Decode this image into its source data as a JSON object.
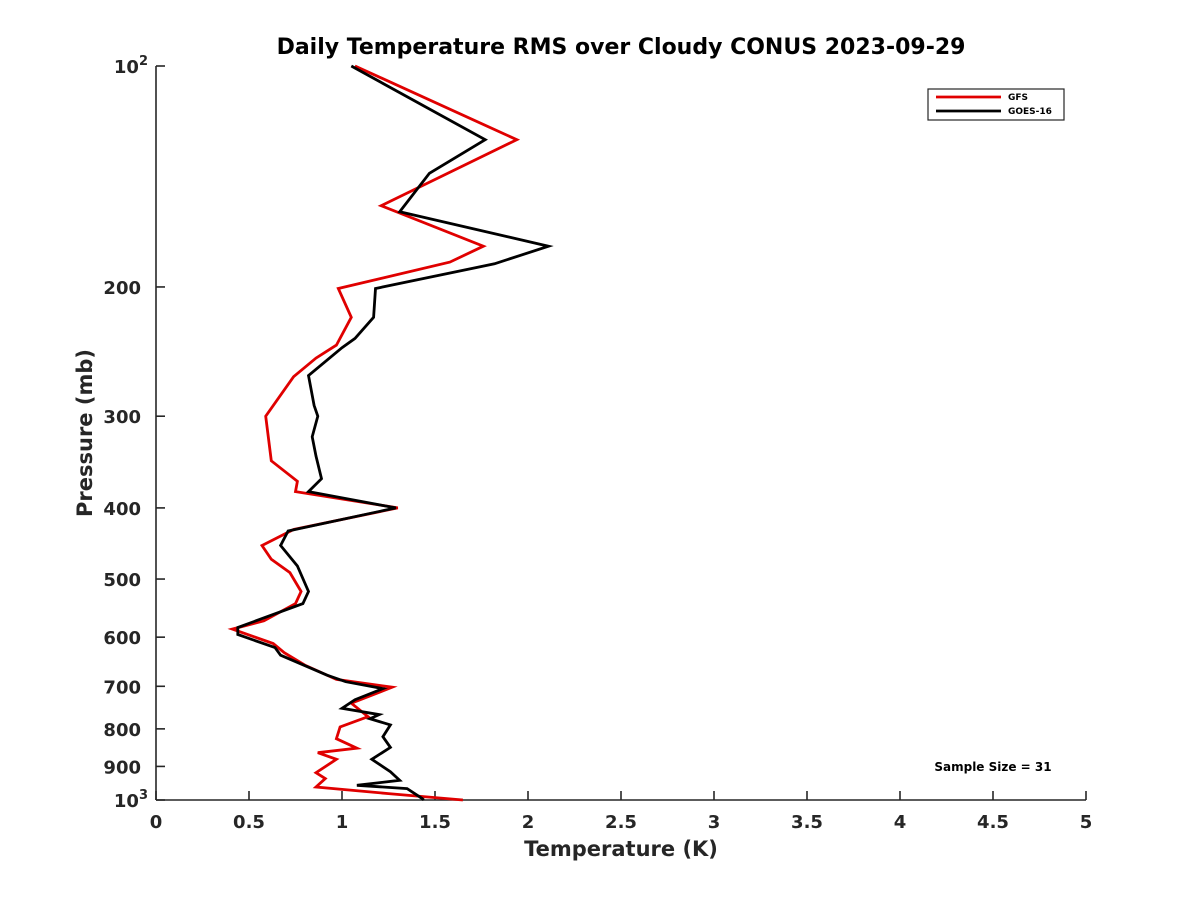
{
  "chart_data": {
    "type": "line",
    "title": "Daily Temperature RMS over Cloudy CONUS 2023-09-29",
    "xlabel": "Temperature (K)",
    "ylabel": "Pressure (mb)",
    "xlim": [
      0,
      5
    ],
    "ylim": [
      100,
      1000
    ],
    "yscale": "log",
    "y_reversed": true,
    "x_ticks": [
      "0",
      "0.5",
      "1",
      "1.5",
      "2",
      "2.5",
      "3",
      "3.5",
      "4",
      "4.5",
      "5"
    ],
    "x_tick_values": [
      0,
      0.5,
      1,
      1.5,
      2,
      2.5,
      3,
      3.5,
      4,
      4.5,
      5
    ],
    "y_ticks": [
      {
        "value": 100,
        "base": "10",
        "exp": "2",
        "label": ""
      },
      {
        "value": 200,
        "label": "200"
      },
      {
        "value": 300,
        "label": "300"
      },
      {
        "value": 400,
        "label": "400"
      },
      {
        "value": 500,
        "label": "500"
      },
      {
        "value": 600,
        "label": "600"
      },
      {
        "value": 700,
        "label": "700"
      },
      {
        "value": 800,
        "label": "800"
      },
      {
        "value": 900,
        "label": "900"
      },
      {
        "value": 1000,
        "base": "10",
        "exp": "3",
        "label": ""
      }
    ],
    "legend_position": "top-right",
    "annotation": "Sample Size = 31",
    "series": [
      {
        "name": "GFS",
        "color": "#e00000",
        "points": [
          [
            1.07,
            100
          ],
          [
            1.94,
            126
          ],
          [
            1.21,
            155
          ],
          [
            1.76,
            176
          ],
          [
            1.58,
            185
          ],
          [
            0.98,
            201
          ],
          [
            1.05,
            220
          ],
          [
            0.97,
            240
          ],
          [
            0.86,
            250
          ],
          [
            0.74,
            265
          ],
          [
            0.59,
            300
          ],
          [
            0.62,
            345
          ],
          [
            0.76,
            368
          ],
          [
            0.75,
            380
          ],
          [
            1.3,
            400
          ],
          [
            0.74,
            428
          ],
          [
            0.57,
            450
          ],
          [
            0.62,
            470
          ],
          [
            0.72,
            490
          ],
          [
            0.78,
            520
          ],
          [
            0.75,
            540
          ],
          [
            0.58,
            570
          ],
          [
            0.41,
            585
          ],
          [
            0.63,
            612
          ],
          [
            0.69,
            630
          ],
          [
            0.8,
            655
          ],
          [
            0.97,
            685
          ],
          [
            1.27,
            702
          ],
          [
            1.05,
            738
          ],
          [
            1.14,
            770
          ],
          [
            0.99,
            795
          ],
          [
            0.97,
            825
          ],
          [
            1.08,
            850
          ],
          [
            0.87,
            862
          ],
          [
            0.97,
            880
          ],
          [
            0.86,
            918
          ],
          [
            0.91,
            935
          ],
          [
            0.86,
            960
          ],
          [
            1.25,
            980
          ],
          [
            1.65,
            1000
          ]
        ]
      },
      {
        "name": "GOES-16",
        "color": "#000000",
        "points": [
          [
            1.05,
            100
          ],
          [
            1.77,
            126
          ],
          [
            1.47,
            140
          ],
          [
            1.31,
            158
          ],
          [
            2.11,
            176
          ],
          [
            1.82,
            186
          ],
          [
            1.73,
            188
          ],
          [
            1.18,
            201
          ],
          [
            1.17,
            220
          ],
          [
            1.07,
            235
          ],
          [
            1.0,
            242
          ],
          [
            0.82,
            264
          ],
          [
            0.85,
            290
          ],
          [
            0.87,
            300
          ],
          [
            0.84,
            320
          ],
          [
            0.86,
            340
          ],
          [
            0.89,
            365
          ],
          [
            0.82,
            380
          ],
          [
            1.29,
            400
          ],
          [
            0.71,
            430
          ],
          [
            0.67,
            450
          ],
          [
            0.76,
            480
          ],
          [
            0.82,
            520
          ],
          [
            0.79,
            540
          ],
          [
            0.44,
            582
          ],
          [
            0.44,
            595
          ],
          [
            0.64,
            620
          ],
          [
            0.67,
            635
          ],
          [
            0.92,
            676
          ],
          [
            1.02,
            690
          ],
          [
            1.22,
            705
          ],
          [
            1.07,
            730
          ],
          [
            1.0,
            750
          ],
          [
            1.2,
            765
          ],
          [
            1.15,
            775
          ],
          [
            1.26,
            790
          ],
          [
            1.22,
            820
          ],
          [
            1.26,
            848
          ],
          [
            1.16,
            880
          ],
          [
            1.26,
            915
          ],
          [
            1.31,
            940
          ],
          [
            1.08,
            955
          ],
          [
            1.35,
            965
          ],
          [
            1.43,
            995
          ],
          [
            1.44,
            1000
          ]
        ]
      }
    ]
  }
}
